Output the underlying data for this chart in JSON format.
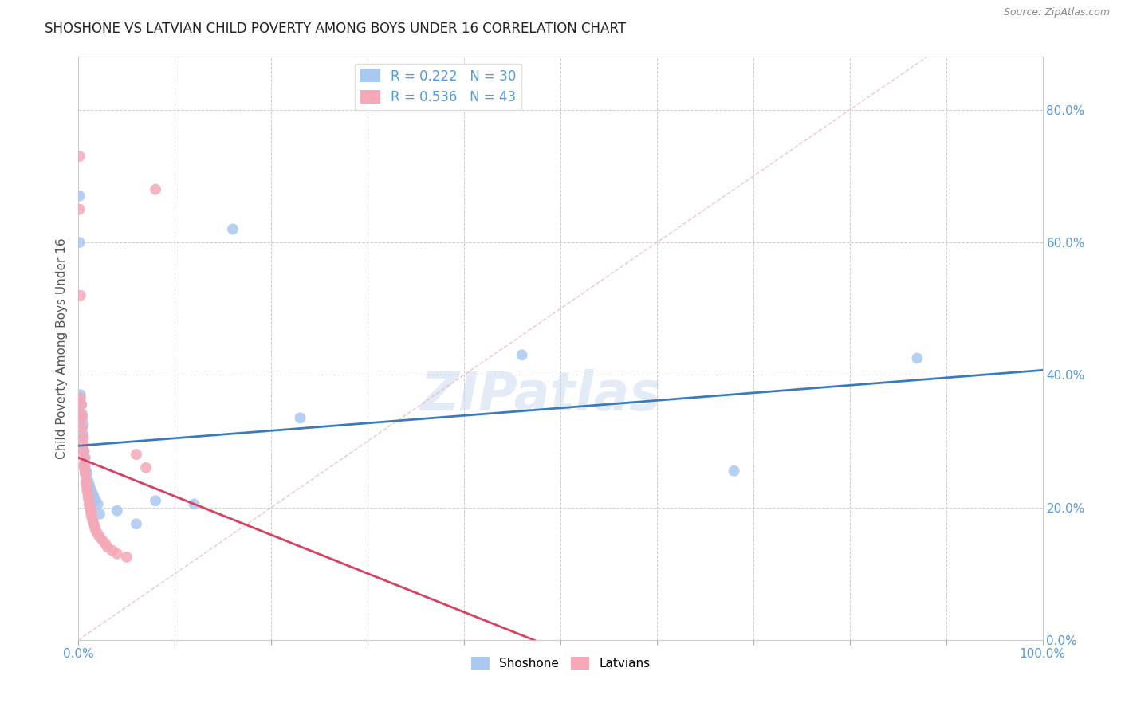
{
  "title": "SHOSHONE VS LATVIAN CHILD POVERTY AMONG BOYS UNDER 16 CORRELATION CHART",
  "source": "Source: ZipAtlas.com",
  "ylabel": "Child Poverty Among Boys Under 16",
  "watermark": "ZIPatlas",
  "shoshone_R": 0.222,
  "shoshone_N": 30,
  "latvian_R": 0.536,
  "latvian_N": 43,
  "shoshone_color": "#a8c8f0",
  "latvian_color": "#f4a8b8",
  "shoshone_line_color": "#3a7abf",
  "latvian_line_color": "#d94060",
  "ref_line_color": "#e8b8c0",
  "shoshone_scatter": [
    [
      0.001,
      0.67
    ],
    [
      0.001,
      0.6
    ],
    [
      0.002,
      0.37
    ],
    [
      0.003,
      0.355
    ],
    [
      0.004,
      0.34
    ],
    [
      0.005,
      0.325
    ],
    [
      0.005,
      0.31
    ],
    [
      0.006,
      0.285
    ],
    [
      0.007,
      0.275
    ],
    [
      0.007,
      0.265
    ],
    [
      0.008,
      0.255
    ],
    [
      0.009,
      0.25
    ],
    [
      0.01,
      0.24
    ],
    [
      0.011,
      0.235
    ],
    [
      0.012,
      0.23
    ],
    [
      0.013,
      0.225
    ],
    [
      0.015,
      0.22
    ],
    [
      0.016,
      0.215
    ],
    [
      0.018,
      0.21
    ],
    [
      0.02,
      0.205
    ],
    [
      0.022,
      0.19
    ],
    [
      0.04,
      0.195
    ],
    [
      0.06,
      0.175
    ],
    [
      0.08,
      0.21
    ],
    [
      0.12,
      0.205
    ],
    [
      0.16,
      0.62
    ],
    [
      0.23,
      0.335
    ],
    [
      0.46,
      0.43
    ],
    [
      0.68,
      0.255
    ],
    [
      0.87,
      0.425
    ]
  ],
  "latvian_scatter": [
    [
      0.001,
      0.73
    ],
    [
      0.001,
      0.65
    ],
    [
      0.002,
      0.52
    ],
    [
      0.002,
      0.365
    ],
    [
      0.003,
      0.355
    ],
    [
      0.003,
      0.34
    ],
    [
      0.004,
      0.335
    ],
    [
      0.004,
      0.32
    ],
    [
      0.005,
      0.305
    ],
    [
      0.005,
      0.295
    ],
    [
      0.005,
      0.285
    ],
    [
      0.006,
      0.275
    ],
    [
      0.006,
      0.265
    ],
    [
      0.006,
      0.26
    ],
    [
      0.007,
      0.255
    ],
    [
      0.007,
      0.25
    ],
    [
      0.008,
      0.24
    ],
    [
      0.008,
      0.235
    ],
    [
      0.009,
      0.23
    ],
    [
      0.009,
      0.225
    ],
    [
      0.01,
      0.22
    ],
    [
      0.01,
      0.215
    ],
    [
      0.011,
      0.21
    ],
    [
      0.011,
      0.205
    ],
    [
      0.012,
      0.2
    ],
    [
      0.013,
      0.195
    ],
    [
      0.013,
      0.19
    ],
    [
      0.014,
      0.185
    ],
    [
      0.015,
      0.18
    ],
    [
      0.016,
      0.175
    ],
    [
      0.017,
      0.17
    ],
    [
      0.018,
      0.165
    ],
    [
      0.02,
      0.16
    ],
    [
      0.022,
      0.155
    ],
    [
      0.025,
      0.15
    ],
    [
      0.028,
      0.145
    ],
    [
      0.03,
      0.14
    ],
    [
      0.035,
      0.135
    ],
    [
      0.04,
      0.13
    ],
    [
      0.05,
      0.125
    ],
    [
      0.06,
      0.28
    ],
    [
      0.07,
      0.26
    ],
    [
      0.08,
      0.68
    ]
  ],
  "xlim": [
    0.0,
    1.0
  ],
  "ylim": [
    0.0,
    0.88
  ],
  "xticks": [
    0.0,
    0.1,
    0.2,
    0.3,
    0.4,
    0.5,
    0.6,
    0.7,
    0.8,
    0.9,
    1.0
  ],
  "yticks": [
    0.0,
    0.2,
    0.4,
    0.6,
    0.8
  ],
  "background_color": "#ffffff",
  "grid_color": "#cccccc",
  "axis_color": "#cccccc",
  "tick_label_color": "#5599dd",
  "marker_size": 100
}
